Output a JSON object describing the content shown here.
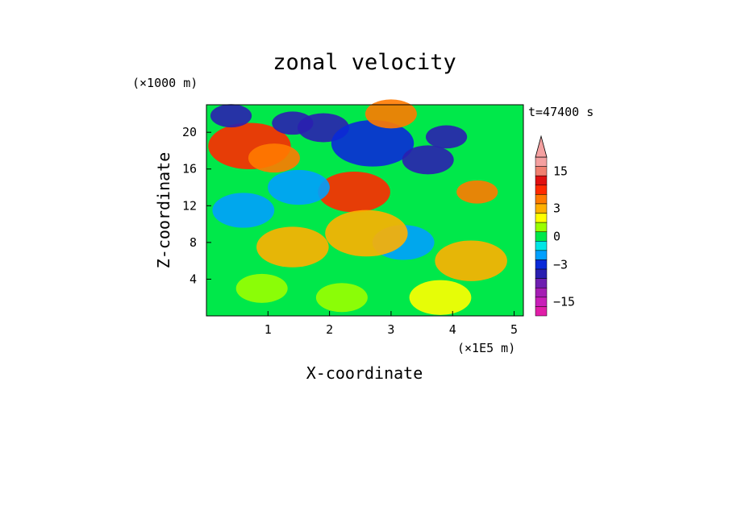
{
  "chart_data": {
    "type": "heatmap",
    "title": "zonal velocity",
    "xlabel": "X-coordinate",
    "ylabel": "Z-coordinate",
    "x_unit": "(×1E5 m)",
    "y_unit": "(×1000 m)",
    "time_label": "t=47400 s",
    "xlim": [
      0,
      5.15
    ],
    "ylim": [
      0,
      23
    ],
    "x_ticks": [
      1,
      2,
      3,
      4,
      5
    ],
    "y_ticks": [
      4,
      8,
      12,
      16,
      20
    ],
    "grid": false,
    "colorbar": {
      "placement": "right",
      "levels": [
        {
          "value": -18,
          "color": "#e01ea8"
        },
        {
          "value": -15,
          "color": "#c81fb8"
        },
        {
          "value": -12,
          "color": "#a51eb4"
        },
        {
          "value": -9,
          "color": "#6e1fb0"
        },
        {
          "value": -6,
          "color": "#2a1fb0"
        },
        {
          "value": -3,
          "color": "#0a2ad8"
        },
        {
          "value": -2,
          "color": "#00a0ff"
        },
        {
          "value": -1,
          "color": "#00e6e6"
        },
        {
          "value": 0,
          "color": "#00e84a"
        },
        {
          "value": 1,
          "color": "#9aff00"
        },
        {
          "value": 2,
          "color": "#ffff00"
        },
        {
          "value": 3,
          "color": "#ffb000"
        },
        {
          "value": 6,
          "color": "#ff7a00"
        },
        {
          "value": 9,
          "color": "#ff2a00"
        },
        {
          "value": 12,
          "color": "#e01010"
        },
        {
          "value": 15,
          "color": "#f08070"
        },
        {
          "value": 18,
          "color": "#f4a0a0"
        }
      ],
      "tick_labels": [
        "15",
        "3",
        "0",
        "−3",
        "−15"
      ]
    },
    "features": [
      {
        "x": 0.7,
        "z": 18.5,
        "u": 9
      },
      {
        "x": 1.1,
        "z": 17.2,
        "u": 6
      },
      {
        "x": 0.4,
        "z": 21.8,
        "u": -5
      },
      {
        "x": 1.4,
        "z": 21.0,
        "u": -5
      },
      {
        "x": 1.9,
        "z": 20.5,
        "u": -6
      },
      {
        "x": 2.7,
        "z": 18.8,
        "u": -4
      },
      {
        "x": 3.6,
        "z": 17.0,
        "u": -6
      },
      {
        "x": 3.9,
        "z": 19.5,
        "u": -5
      },
      {
        "x": 2.4,
        "z": 13.5,
        "u": 8
      },
      {
        "x": 3.0,
        "z": 22.0,
        "u": 6
      },
      {
        "x": 4.4,
        "z": 13.5,
        "u": 5
      },
      {
        "x": 1.5,
        "z": 14.0,
        "u": -2
      },
      {
        "x": 0.6,
        "z": 11.5,
        "u": -2
      },
      {
        "x": 3.2,
        "z": 8.0,
        "u": -2
      },
      {
        "x": 2.6,
        "z": 9.0,
        "u": 4
      },
      {
        "x": 1.4,
        "z": 7.5,
        "u": 3
      },
      {
        "x": 4.3,
        "z": 6.0,
        "u": 3
      },
      {
        "x": 0.9,
        "z": 3.0,
        "u": 1
      },
      {
        "x": 3.8,
        "z": 2.0,
        "u": 2
      },
      {
        "x": 2.2,
        "z": 2.0,
        "u": 1
      }
    ]
  }
}
